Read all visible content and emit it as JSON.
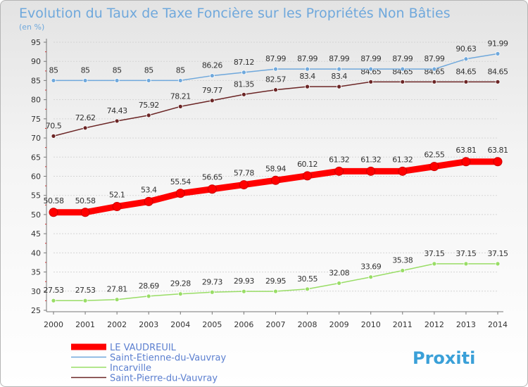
{
  "chart_data": {
    "type": "line",
    "title": "Evolution du Taux de Taxe Foncière sur les Propriétés Non Bâties",
    "ylabel": "(en %)",
    "xlabel": "",
    "ylim": [
      25,
      95
    ],
    "yticks": [
      25,
      30,
      35,
      40,
      45,
      50,
      55,
      60,
      65,
      70,
      75,
      80,
      85,
      90,
      95
    ],
    "categories": [
      "2000",
      "2001",
      "2002",
      "2003",
      "2004",
      "2005",
      "2006",
      "2007",
      "2008",
      "2009",
      "2010",
      "2011",
      "2012",
      "2013",
      "2014"
    ],
    "series": [
      {
        "name": "LE VAUDREUIL",
        "color": "#ff0000",
        "values": [
          50.58,
          50.58,
          52.1,
          53.4,
          55.54,
          56.65,
          57.78,
          58.94,
          60.12,
          61.32,
          61.32,
          61.32,
          62.55,
          63.81,
          63.81
        ],
        "labels": [
          "50.58",
          "50.58",
          "52.1",
          "53.4",
          "55.54",
          "56.65",
          "57.78",
          "58.94",
          "60.12",
          "61.32",
          "61.32",
          "61.32",
          "62.55",
          "63.81",
          "63.81"
        ]
      },
      {
        "name": "Saint-Etienne-du-Vauvray",
        "color": "#6fa8dc",
        "values": [
          85,
          85,
          85,
          85,
          85,
          86.26,
          87.12,
          87.99,
          87.99,
          87.99,
          87.99,
          87.99,
          87.99,
          90.63,
          91.99
        ],
        "labels": [
          "85",
          "85",
          "85",
          "85",
          "85",
          "86.26",
          "87.12",
          "87.99",
          "87.99",
          "87.99",
          "87.99",
          "87.99",
          "87.99",
          "90.63",
          "91.99"
        ]
      },
      {
        "name": "Incarville",
        "color": "#99dd66",
        "values": [
          27.53,
          27.53,
          27.81,
          28.69,
          29.28,
          29.73,
          29.93,
          29.95,
          30.55,
          32.08,
          33.69,
          35.38,
          37.15,
          37.15,
          37.15
        ],
        "labels": [
          "27.53",
          "27.53",
          "27.81",
          "28.69",
          "29.28",
          "29.73",
          "29.93",
          "29.95",
          "30.55",
          "32.08",
          "33.69",
          "35.38",
          "37.15",
          "37.15",
          "37.15"
        ]
      },
      {
        "name": "Saint-Pierre-du-Vauvray",
        "color": "#6b2525",
        "values": [
          70.5,
          72.62,
          74.43,
          75.92,
          78.21,
          79.77,
          81.35,
          82.57,
          83.4,
          83.4,
          84.65,
          84.65,
          84.65,
          84.65,
          84.65
        ],
        "labels": [
          "70.5",
          "72.62",
          "74.43",
          "75.92",
          "78.21",
          "79.77",
          "81.35",
          "82.57",
          "83.4",
          "83.4",
          "84.65",
          "84.65",
          "84.65",
          "84.65",
          "84.65"
        ]
      }
    ],
    "legend_position": "bottom-left"
  },
  "branding": {
    "logo_text": "Proxiti"
  }
}
